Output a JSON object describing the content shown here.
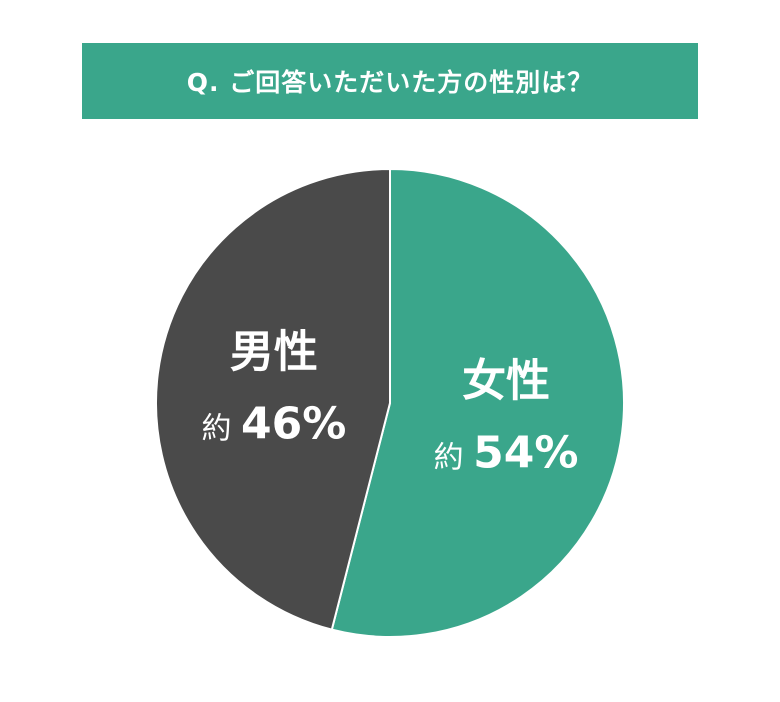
{
  "chart_data": {
    "type": "pie",
    "title": "Q. ご回答いただいた方の性別は？",
    "slices": [
      {
        "name": "女性",
        "prefix": "約",
        "value": 54,
        "label": "54%",
        "color": "#3aa68b"
      },
      {
        "name": "男性",
        "prefix": "約",
        "value": 46,
        "label": "46%",
        "color": "#4a4a4a"
      }
    ],
    "start_angle": "top",
    "direction": "clockwise"
  }
}
